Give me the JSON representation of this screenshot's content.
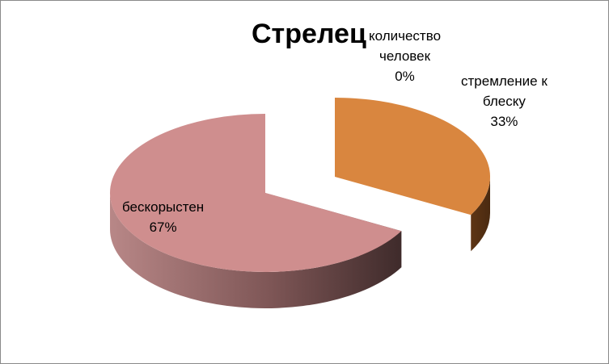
{
  "chart_data": {
    "type": "pie",
    "title": "Стрелец",
    "slices": [
      {
        "label_lines": [
          "количество",
          "человек"
        ],
        "percent_text": "0%",
        "value": 0,
        "color": "#d8d8d8"
      },
      {
        "label_lines": [
          "стремление к",
          "блеску"
        ],
        "percent_text": "33%",
        "value": 33,
        "color": "#d9863f"
      },
      {
        "label_lines": [
          "бескорыстен"
        ],
        "percent_text": "67%",
        "value": 67,
        "color": "#cf8e8e"
      }
    ],
    "legend": "none",
    "style": "3d-exploded"
  }
}
